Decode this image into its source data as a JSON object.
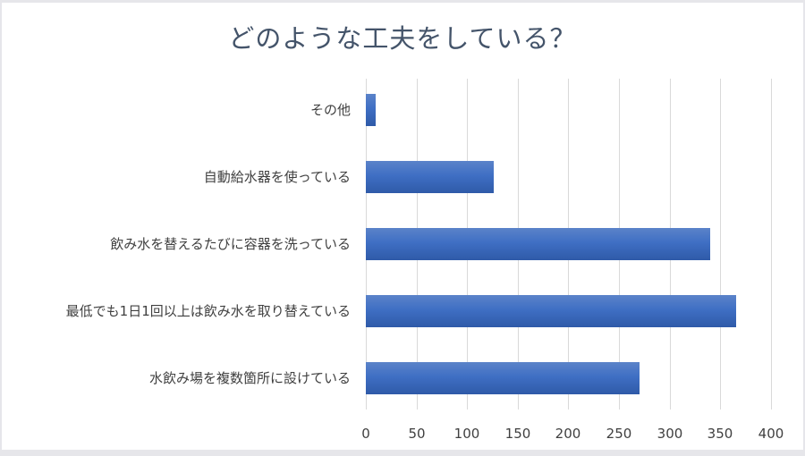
{
  "chart_data": {
    "type": "bar",
    "orientation": "horizontal",
    "title": "どのような工夫をしている？",
    "categories": [
      "その他",
      "自動給水器を使っている",
      "飲み水を替えるたびに容器を洗っている",
      "最低でも1日1回以上は飲み水を取り替えている",
      "水飲み場を複数箇所に設けている"
    ],
    "values": [
      10,
      126,
      340,
      366,
      270
    ],
    "xlabel": "",
    "ylabel": "",
    "xlim": [
      0,
      400
    ],
    "xticks": [
      "0",
      "50",
      "100",
      "150",
      "200",
      "250",
      "300",
      "350",
      "400"
    ],
    "grid": true,
    "legend": "none",
    "bar_color": "#4472c4"
  }
}
